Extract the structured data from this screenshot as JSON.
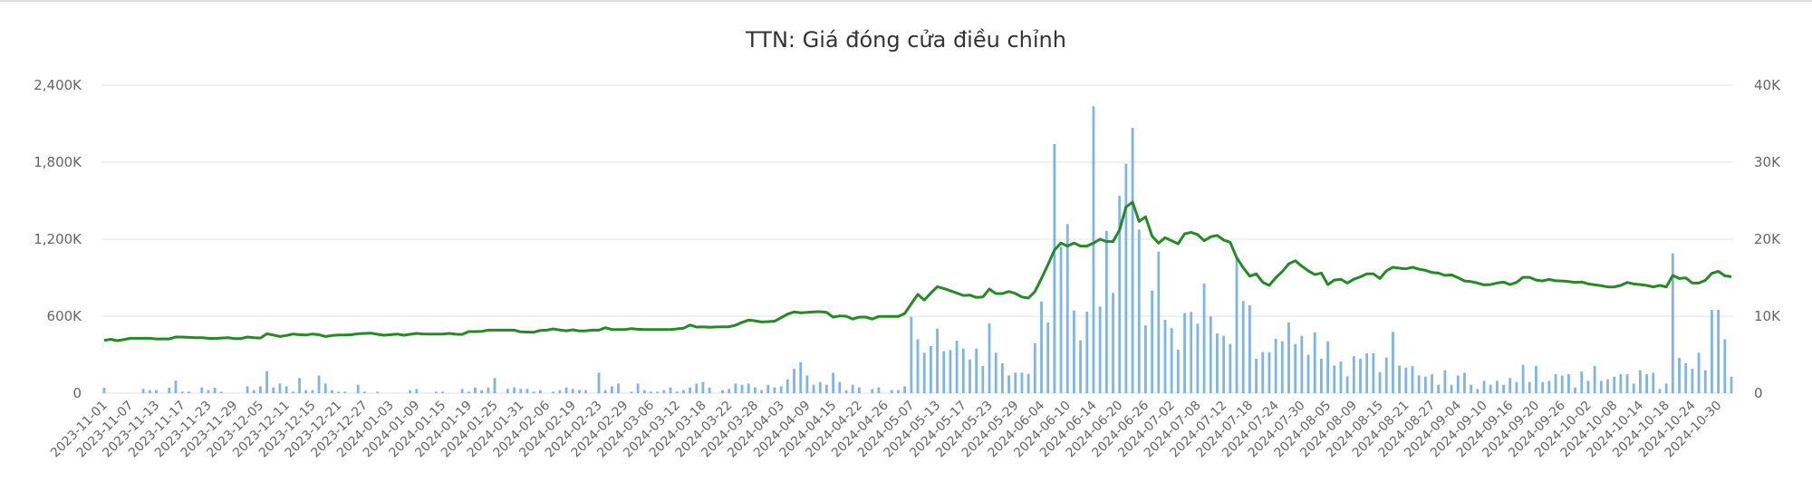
{
  "chart_data": {
    "type": "bar+line",
    "title": "TTN: Giá đóng cửa điều chỉnh",
    "colors": {
      "bar": "#7cb5ec",
      "line": "#228b22"
    },
    "grid": true,
    "legend": "none",
    "x_tick_labels": [
      "2023-11-01",
      "2023-11-07",
      "2023-11-13",
      "2023-11-17",
      "2023-11-23",
      "2023-11-29",
      "2023-12-05",
      "2023-12-11",
      "2023-12-15",
      "2023-12-21",
      "2023-12-27",
      "2024-01-03",
      "2024-01-09",
      "2024-01-15",
      "2024-01-19",
      "2024-01-25",
      "2024-01-31",
      "2024-02-06",
      "2024-02-19",
      "2024-02-23",
      "2024-02-29",
      "2024-03-06",
      "2024-03-12",
      "2024-03-18",
      "2024-03-22",
      "2024-03-28",
      "2024-04-03",
      "2024-04-09",
      "2024-04-15",
      "2024-04-22",
      "2024-04-26",
      "2024-05-07",
      "2024-05-13",
      "2024-05-17",
      "2024-05-23",
      "2024-05-29",
      "2024-06-04",
      "2024-06-10",
      "2024-06-14",
      "2024-06-20",
      "2024-06-26",
      "2024-07-02",
      "2024-07-08",
      "2024-07-12",
      "2024-07-18",
      "2024-07-24",
      "2024-07-30",
      "2024-08-05",
      "2024-08-09",
      "2024-08-15",
      "2024-08-21",
      "2024-08-27",
      "2024-09-04",
      "2024-09-10",
      "2024-09-16",
      "2024-09-20",
      "2024-09-26",
      "2024-10-02",
      "2024-10-08",
      "2024-10-14",
      "2024-10-18",
      "2024-10-24",
      "2024-10-30"
    ],
    "y_left": {
      "ticks": [
        "0",
        "600K",
        "1,200K",
        "1,800K",
        "2,400K"
      ],
      "ylim": [
        0,
        2400
      ]
    },
    "y_right": {
      "ticks": [
        "0",
        "10K",
        "20K",
        "30K",
        "40K"
      ],
      "ylim": [
        0,
        40
      ]
    },
    "series": [
      {
        "type": "bar",
        "axis": "left",
        "values": [
          42,
          0,
          0,
          0,
          0,
          0,
          33,
          24,
          24,
          0,
          42,
          99,
          12,
          12,
          0,
          45,
          24,
          42,
          12,
          0,
          0,
          0,
          54,
          24,
          54,
          172,
          45,
          75,
          54,
          12,
          118,
          24,
          24,
          139,
          75,
          24,
          12,
          12,
          0,
          66,
          12,
          0,
          12,
          0,
          0,
          0,
          0,
          24,
          33,
          0,
          0,
          12,
          12,
          0,
          0,
          33,
          12,
          45,
          24,
          45,
          118,
          0,
          33,
          45,
          33,
          33,
          12,
          24,
          0,
          12,
          24,
          45,
          33,
          24,
          24,
          0,
          160,
          24,
          54,
          75,
          0,
          12,
          75,
          24,
          12,
          12,
          24,
          45,
          12,
          24,
          45,
          75,
          87,
          45,
          0,
          24,
          33,
          75,
          66,
          75,
          45,
          24,
          66,
          45,
          54,
          108,
          190,
          242,
          139,
          66,
          87,
          66,
          160,
          87,
          24,
          66,
          45,
          0,
          33,
          45,
          0,
          24,
          24,
          54,
          595,
          420,
          315,
          367,
          503,
          327,
          336,
          409,
          348,
          263,
          348,
          212,
          545,
          315,
          233,
          139,
          160,
          160,
          150,
          388,
          715,
          551,
          1941,
          1141,
          1318,
          645,
          412,
          635,
          2235,
          675,
          1264,
          781,
          1537,
          1788,
          2068,
          1275,
          529,
          800,
          1104,
          572,
          508,
          339,
          624,
          633,
          541,
          854,
          600,
          466,
          447,
          384,
          1047,
          718,
          685,
          268,
          320,
          320,
          424,
          405,
          551,
          384,
          447,
          299,
          475,
          268,
          405,
          216,
          247,
          132,
          289,
          268,
          311,
          311,
          165,
          278,
          478,
          216,
          200,
          212,
          139,
          129,
          148,
          66,
          179,
          66,
          139,
          160,
          66,
          33,
          96,
          66,
          96,
          66,
          118,
          87,
          221,
          87,
          212,
          87,
          96,
          148,
          139,
          148,
          45,
          169,
          96,
          212,
          96,
          108,
          129,
          148,
          148,
          75,
          179,
          148,
          160,
          33,
          75,
          1090,
          275,
          233,
          190,
          315,
          179,
          649,
          649,
          420,
          129
        ]
      },
      {
        "type": "line",
        "axis": "right",
        "values": [
          6.86,
          7.0,
          6.82,
          6.95,
          7.13,
          7.13,
          7.13,
          7.13,
          7.05,
          7.05,
          7.05,
          7.29,
          7.29,
          7.25,
          7.21,
          7.2,
          7.13,
          7.1,
          7.16,
          7.21,
          7.09,
          7.09,
          7.29,
          7.2,
          7.17,
          7.72,
          7.55,
          7.37,
          7.5,
          7.68,
          7.6,
          7.56,
          7.68,
          7.6,
          7.37,
          7.5,
          7.56,
          7.56,
          7.6,
          7.72,
          7.76,
          7.8,
          7.65,
          7.53,
          7.6,
          7.68,
          7.53,
          7.65,
          7.76,
          7.7,
          7.68,
          7.68,
          7.68,
          7.76,
          7.66,
          7.64,
          8.0,
          8.0,
          8.04,
          8.19,
          8.19,
          8.19,
          8.19,
          8.19,
          7.96,
          7.94,
          7.92,
          8.15,
          8.19,
          8.35,
          8.2,
          8.11,
          8.23,
          8.08,
          8.1,
          8.19,
          8.19,
          8.51,
          8.27,
          8.27,
          8.27,
          8.39,
          8.3,
          8.27,
          8.27,
          8.27,
          8.27,
          8.27,
          8.35,
          8.43,
          8.86,
          8.59,
          8.62,
          8.55,
          8.6,
          8.62,
          8.62,
          8.82,
          9.2,
          9.49,
          9.4,
          9.25,
          9.29,
          9.35,
          9.8,
          10.27,
          10.55,
          10.45,
          10.5,
          10.55,
          10.59,
          10.5,
          9.88,
          10.04,
          10.0,
          9.64,
          9.88,
          9.88,
          9.64,
          9.96,
          9.96,
          9.96,
          9.96,
          10.35,
          11.6,
          12.82,
          12.11,
          13.0,
          13.84,
          13.6,
          13.3,
          13.01,
          12.7,
          12.74,
          12.43,
          12.5,
          13.52,
          12.94,
          12.94,
          13.21,
          12.94,
          12.5,
          12.35,
          13.2,
          14.9,
          16.7,
          18.6,
          19.5,
          19.1,
          19.5,
          19.1,
          19.1,
          19.5,
          20.0,
          19.7,
          19.7,
          21.2,
          24.2,
          24.8,
          22.3,
          22.9,
          20.4,
          19.5,
          20.2,
          19.8,
          19.4,
          20.7,
          20.9,
          20.6,
          19.8,
          20.3,
          20.5,
          19.9,
          19.6,
          17.6,
          16.3,
          15.2,
          15.5,
          14.4,
          14.0,
          15.0,
          15.8,
          16.8,
          17.2,
          16.5,
          15.9,
          15.4,
          15.6,
          14.1,
          14.7,
          14.8,
          14.3,
          14.8,
          15.1,
          15.5,
          15.5,
          14.9,
          15.9,
          16.35,
          16.23,
          16.15,
          16.35,
          16.1,
          15.95,
          15.68,
          15.6,
          15.29,
          15.37,
          15.0,
          14.58,
          14.5,
          14.3,
          14.07,
          14.11,
          14.3,
          14.43,
          14.11,
          14.39,
          15.05,
          15.05,
          14.7,
          14.58,
          14.78,
          14.6,
          14.58,
          14.5,
          14.39,
          14.45,
          14.2,
          14.07,
          13.96,
          13.8,
          13.8,
          14.0,
          14.39,
          14.19,
          14.1,
          14.0,
          13.8,
          14.0,
          13.8,
          15.29,
          14.9,
          14.98,
          14.31,
          14.31,
          14.66,
          15.56,
          15.84,
          15.25,
          15.13
        ]
      }
    ]
  }
}
